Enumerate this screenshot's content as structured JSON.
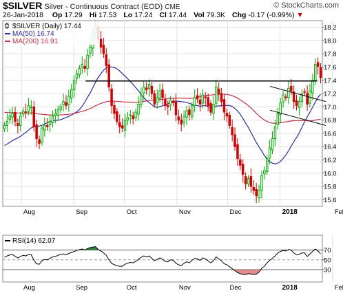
{
  "header": {
    "symbol": "$SILVER",
    "description": "Silver - Continuous Contract (EOD)",
    "exchange": "CME",
    "brand": "© StockCharts.com",
    "date": "26-Jan-2018",
    "ohlc": [
      {
        "label": "Op",
        "value": "17.29"
      },
      {
        "label": "Hi",
        "value": "17.53"
      },
      {
        "label": "Lo",
        "value": "17.24"
      },
      {
        "label": "Cl",
        "value": "17.44"
      },
      {
        "label": "Vol",
        "value": "79.3K"
      },
      {
        "label": "Chg",
        "value": "-0.17 (-0.99%)"
      }
    ]
  },
  "colors": {
    "up": "#00aa00",
    "down": "#cc0000",
    "ma50": "#2b2b9b",
    "ma200": "#c0304a",
    "rsi_fill_high": "#2e7d32",
    "rsi_fill_low": "#d04040",
    "grid": "#e0e0e0"
  },
  "chart_data": [
    {
      "type": "candlestick",
      "legend": [
        {
          "label": "$SILVER (Daily) 17.44",
          "icon": "candle-icon"
        },
        {
          "label": "MA(50) 16.74",
          "color": "#2b2b9b"
        },
        {
          "label": "MA(200) 16.91",
          "color": "#c0304a"
        }
      ],
      "y_ticks": [
        "15.6",
        "15.8",
        "16.0",
        "16.2",
        "16.4",
        "16.6",
        "16.8",
        "17.0",
        "17.2",
        "17.4",
        "17.6",
        "17.8",
        "18.0",
        "18.2"
      ],
      "ylim": [
        15.5,
        18.3
      ],
      "x_labels": [
        {
          "label": "Aug",
          "bold": false,
          "day": 0
        },
        {
          "label": "Sep",
          "bold": false,
          "day": 31
        },
        {
          "label": "Oct",
          "bold": false,
          "day": 61
        },
        {
          "label": "Nov",
          "bold": false,
          "day": 92
        },
        {
          "label": "Dec",
          "bold": false,
          "day": 122
        },
        {
          "label": "2018",
          "bold": true,
          "day": 153
        },
        {
          "label": "Feb",
          "bold": false,
          "day": 184
        }
      ],
      "x_day_range": [
        -11,
        178
      ],
      "closes": [
        16.72,
        16.78,
        16.86,
        16.9,
        16.78,
        16.72,
        16.86,
        16.94,
        16.92,
        17.02,
        17.0,
        16.7,
        16.52,
        16.45,
        16.68,
        16.72,
        16.7,
        16.78,
        16.86,
        16.9,
        16.96,
        17.0,
        17.08,
        17.02,
        17.16,
        17.26,
        17.4,
        17.5,
        17.58,
        17.64,
        17.58,
        17.78,
        17.9,
        18.1,
        18.24,
        18.02,
        17.9,
        17.8,
        17.62,
        17.3,
        17.02,
        16.9,
        16.78,
        16.7,
        16.68,
        16.8,
        16.84,
        16.88,
        16.82,
        16.92,
        17.04,
        17.18,
        17.3,
        17.26,
        17.34,
        17.2,
        17.04,
        17.14,
        17.24,
        17.14,
        17.02,
        17.0,
        17.1,
        17.06,
        16.88,
        16.8,
        16.74,
        16.86,
        16.94,
        16.88,
        17.02,
        17.14,
        17.12,
        17.04,
        17.18,
        17.14,
        17.02,
        16.92,
        17.04,
        17.3,
        17.2,
        17.08,
        16.92,
        16.86,
        16.72,
        16.58,
        16.4,
        16.22,
        16.12,
        15.98,
        15.84,
        15.92,
        15.8,
        15.74,
        15.66,
        15.74,
        15.96,
        16.04,
        16.22,
        16.38,
        16.52,
        16.7,
        16.9,
        17.06,
        17.18,
        17.14,
        17.28,
        17.24,
        17.08,
        17.02,
        17.08,
        17.2,
        17.22,
        17.04,
        17.24,
        17.4,
        17.64,
        17.61,
        17.44
      ],
      "trend_lines": [
        {
          "name": "resistance",
          "x": [
            38,
            175
          ],
          "y": [
            17.39,
            17.39
          ]
        },
        {
          "name": "channel-upper",
          "x": [
            147,
            180
          ],
          "y": [
            17.31,
            17.08
          ]
        },
        {
          "name": "channel-lower",
          "x": [
            147,
            180
          ],
          "y": [
            16.95,
            16.72
          ]
        }
      ]
    },
    {
      "type": "line",
      "legend": [
        {
          "label": "RSI(14) 62.07",
          "color": "#000000"
        }
      ],
      "y_ticks": [
        "30",
        "50",
        "70"
      ],
      "ylim": [
        5,
        100
      ],
      "levels": [
        30,
        50,
        70
      ],
      "values": [
        55,
        58,
        60,
        61,
        57,
        54,
        57,
        59,
        58,
        61,
        60,
        49,
        42,
        41,
        48,
        51,
        50,
        53,
        56,
        57,
        59,
        61,
        62,
        60,
        63,
        65,
        67,
        69,
        71,
        72,
        70,
        73,
        75,
        76,
        77,
        71,
        68,
        64,
        59,
        50,
        43,
        40,
        38,
        37,
        37,
        41,
        43,
        45,
        44,
        47,
        51,
        55,
        58,
        56,
        58,
        53,
        48,
        51,
        54,
        51,
        47,
        46,
        50,
        49,
        43,
        40,
        38,
        43,
        46,
        44,
        49,
        53,
        52,
        49,
        54,
        52,
        48,
        44,
        48,
        56,
        52,
        48,
        42,
        40,
        36,
        32,
        28,
        24,
        22,
        20,
        20,
        22,
        21,
        20,
        21,
        25,
        33,
        37,
        44,
        49,
        53,
        58,
        64,
        67,
        69,
        68,
        71,
        70,
        64,
        60,
        61,
        64,
        64,
        57,
        62,
        67,
        72,
        68,
        62
      ]
    }
  ]
}
